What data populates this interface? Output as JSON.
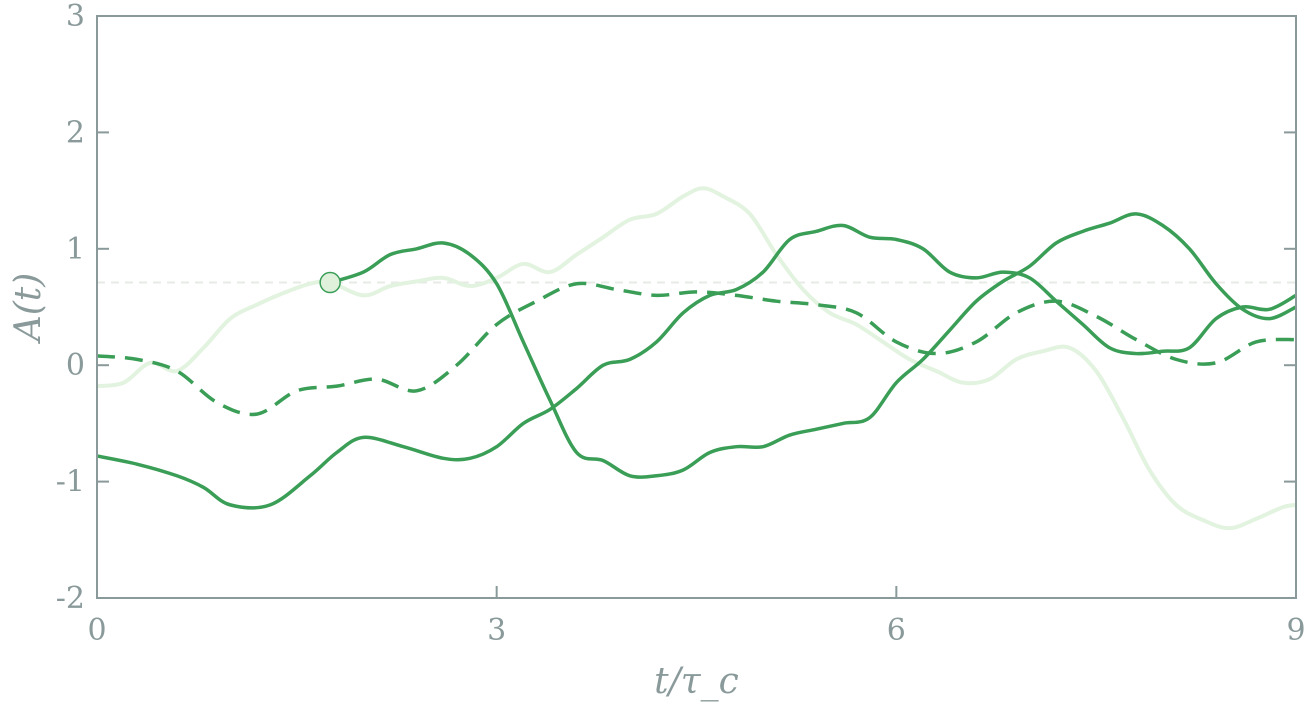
{
  "chart_data": {
    "type": "line",
    "title": "",
    "xlabel": "t/τ_c",
    "ylabel": "A(t)",
    "xlim": [
      0,
      9
    ],
    "ylim": [
      -2,
      3
    ],
    "x_ticks": [
      0,
      3,
      6,
      9
    ],
    "x_tick_labels": [
      "0",
      "3",
      "6",
      "9"
    ],
    "y_ticks": [
      -2,
      -1,
      0,
      1,
      2,
      3
    ],
    "y_tick_labels": [
      "-2",
      "-1",
      "0",
      "1",
      "2",
      "3"
    ],
    "grid": false,
    "colors": {
      "axis": "#8a9a9a",
      "solid": "#3a9e57",
      "dashed": "#3a9e57",
      "light": "#e2f3df",
      "threshold": "#e6ebe6",
      "marker_fill": "#dff0db",
      "marker_stroke": "#3a9e57"
    },
    "threshold": 0.71,
    "marker": {
      "x": 1.75,
      "y": 0.71
    },
    "series": [
      {
        "style": "light",
        "x": [
          0,
          0.2,
          0.4,
          0.6,
          0.8,
          1.0,
          1.2,
          1.4,
          1.6,
          1.75,
          2.0,
          2.2,
          2.4,
          2.6,
          2.8,
          3.0,
          3.2,
          3.4,
          3.6,
          3.8,
          4.0,
          4.2,
          4.4,
          4.55,
          4.7,
          4.9,
          5.1,
          5.3,
          5.5,
          5.7,
          5.9,
          6.1,
          6.3,
          6.5,
          6.7,
          6.9,
          7.1,
          7.3,
          7.5,
          7.7,
          7.9,
          8.1,
          8.3,
          8.5,
          8.7,
          8.9,
          9.0
        ],
        "y": [
          -0.18,
          -0.15,
          0.02,
          -0.05,
          0.15,
          0.4,
          0.52,
          0.62,
          0.7,
          0.71,
          0.6,
          0.68,
          0.72,
          0.75,
          0.68,
          0.75,
          0.87,
          0.8,
          0.95,
          1.1,
          1.25,
          1.3,
          1.45,
          1.52,
          1.45,
          1.3,
          0.95,
          0.65,
          0.45,
          0.35,
          0.2,
          0.05,
          -0.05,
          -0.15,
          -0.12,
          0.05,
          0.12,
          0.15,
          -0.05,
          -0.45,
          -0.9,
          -1.2,
          -1.33,
          -1.4,
          -1.32,
          -1.22,
          -1.2
        ]
      },
      {
        "style": "dashed",
        "x": [
          0,
          0.3,
          0.6,
          0.9,
          1.2,
          1.5,
          1.8,
          2.1,
          2.4,
          2.7,
          3.0,
          3.3,
          3.6,
          3.9,
          4.2,
          4.5,
          4.8,
          5.1,
          5.4,
          5.7,
          6.0,
          6.3,
          6.6,
          6.9,
          7.2,
          7.5,
          7.8,
          8.1,
          8.4,
          8.7,
          9.0
        ],
        "y": [
          0.08,
          0.05,
          -0.05,
          -0.32,
          -0.42,
          -0.22,
          -0.18,
          -0.12,
          -0.22,
          0.0,
          0.35,
          0.55,
          0.7,
          0.65,
          0.6,
          0.63,
          0.6,
          0.55,
          0.52,
          0.45,
          0.2,
          0.1,
          0.2,
          0.45,
          0.55,
          0.42,
          0.22,
          0.05,
          0.02,
          0.2,
          0.22
        ]
      },
      {
        "style": "solid",
        "x": [
          0,
          0.3,
          0.6,
          0.8,
          1.0,
          1.3,
          1.6,
          1.8,
          2.0,
          2.3,
          2.6,
          2.8,
          3.0,
          3.2,
          3.4,
          3.6,
          3.8,
          4.0,
          4.2,
          4.4,
          4.6,
          4.8,
          5.0,
          5.2,
          5.4,
          5.6,
          5.8,
          6.0,
          6.2,
          6.4,
          6.6,
          6.8,
          7.0,
          7.2,
          7.4,
          7.6,
          7.8,
          8.0,
          8.2,
          8.4,
          8.6,
          8.8,
          9.0
        ],
        "y": [
          -0.78,
          -0.85,
          -0.95,
          -1.05,
          -1.2,
          -1.2,
          -0.95,
          -0.75,
          -0.62,
          -0.7,
          -0.8,
          -0.8,
          -0.7,
          -0.5,
          -0.38,
          -0.2,
          0.0,
          0.05,
          0.2,
          0.45,
          0.6,
          0.65,
          0.8,
          1.08,
          1.15,
          1.2,
          1.1,
          1.08,
          1.0,
          0.8,
          0.75,
          0.8,
          0.75,
          0.55,
          0.35,
          0.15,
          0.1,
          0.12,
          0.15,
          0.4,
          0.5,
          0.48,
          0.6
        ]
      },
      {
        "style": "solid",
        "x": [
          1.75,
          2.0,
          2.2,
          2.4,
          2.6,
          2.8,
          3.0,
          3.2,
          3.4,
          3.6,
          3.8,
          4.0,
          4.2,
          4.4,
          4.6,
          4.8,
          5.0,
          5.2,
          5.4,
          5.6,
          5.8,
          6.0,
          6.2,
          6.4,
          6.6,
          6.8,
          7.0,
          7.2,
          7.4,
          7.6,
          7.8,
          8.0,
          8.2,
          8.4,
          8.6,
          8.8,
          9.0
        ],
        "y": [
          0.71,
          0.8,
          0.95,
          1.0,
          1.05,
          0.95,
          0.7,
          0.2,
          -0.3,
          -0.75,
          -0.82,
          -0.95,
          -0.95,
          -0.9,
          -0.75,
          -0.7,
          -0.7,
          -0.6,
          -0.55,
          -0.5,
          -0.45,
          -0.15,
          0.05,
          0.3,
          0.55,
          0.72,
          0.85,
          1.05,
          1.15,
          1.22,
          1.3,
          1.2,
          1.0,
          0.7,
          0.48,
          0.4,
          0.5
        ]
      }
    ]
  }
}
